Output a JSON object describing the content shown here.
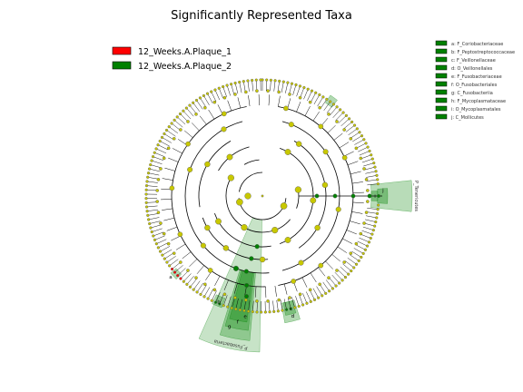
{
  "chart_data": {
    "type": "cladogram",
    "title": "Significantly Represented Taxa",
    "groups": [
      {
        "name": "12_Weeks.A.Plaque_1",
        "color": "#ff0000"
      },
      {
        "name": "12_Weeks.A.Plaque_2",
        "color": "#008000"
      }
    ],
    "clade_key": [
      {
        "key": "a",
        "label": "a: F_Coriobacteriaceae"
      },
      {
        "key": "b",
        "label": "b: F_Peptostreptococcaceae"
      },
      {
        "key": "c",
        "label": "c: F_Veillonellaceae"
      },
      {
        "key": "d",
        "label": "d: O_Veillonellales"
      },
      {
        "key": "e",
        "label": "e: F_Fusobacteriaceae"
      },
      {
        "key": "f",
        "label": "f: O_Fusobacteriales"
      },
      {
        "key": "g",
        "label": "g: C_Fusobacteriia"
      },
      {
        "key": "h",
        "label": "h: F_Mycoplasmataceae"
      },
      {
        "key": "i",
        "label": "i: O_Mycoplasmatales"
      },
      {
        "key": "j",
        "label": "j: C_Mollicutes"
      }
    ],
    "phylum_labels": [
      "P_Tenericutes",
      "P_Fusobacteria"
    ],
    "highlight_letters": [
      "a",
      "b",
      "c",
      "d",
      "e",
      "f",
      "g",
      "h",
      "i",
      "j"
    ],
    "node_colors": {
      "neutral": "#c8c800",
      "group1": "#ff0000",
      "group2": "#008000"
    }
  }
}
